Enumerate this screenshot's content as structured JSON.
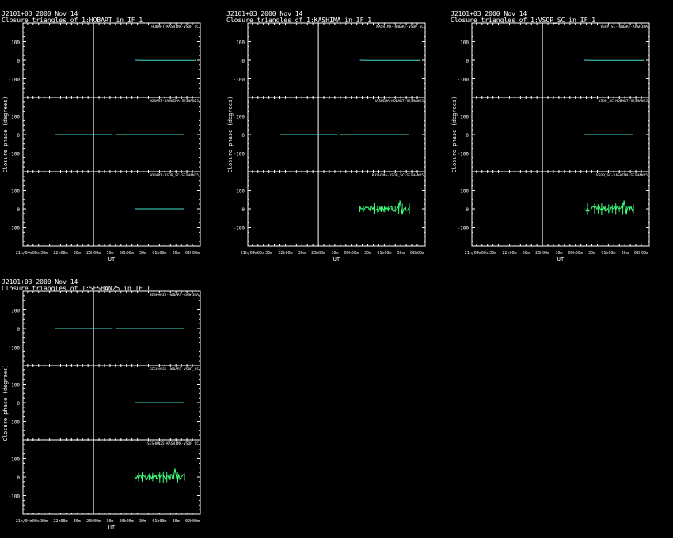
{
  "source": "J2101+03",
  "date": "2000 Nov 14",
  "ylabel": "Closure phase  (degrees)",
  "xlabel": "UT",
  "yticks": [
    "100",
    "0",
    "-100"
  ],
  "xticks": [
    "21h/04m00s",
    "30m",
    "22h00m",
    "30m",
    "23h00m",
    "30m",
    "00h00m",
    "30m",
    "01h00m",
    "30m",
    "02h00m"
  ],
  "colors": {
    "background": "#000000",
    "axes": "#ffffff",
    "cyan": "#40e0d0",
    "green": "#40ff80"
  },
  "chart_data": [
    {
      "type": "line",
      "title": "Closure triangles of 1:HOBART in IF 1",
      "panels": [
        {
          "label": "HOBART-KASHIMA-VSOP_SC",
          "series": [
            {
              "color": "cyan",
              "segments": [
                [
                  0.63,
                  0.74,
                  0,
                  -1
                ],
                [
                  0.74,
                  1.55,
                  -1,
                  -1
                ]
              ]
            }
          ]
        },
        {
          "label": "HOBART-KASHIMA-SESHAN25",
          "series": [
            {
              "color": "cyan",
              "segments": [
                [
                  -0.58,
                  0.29,
                  0,
                  0
                ],
                [
                  0.33,
                  1.38,
                  0,
                  0
                ]
              ]
            }
          ]
        },
        {
          "label": "HOBART-VSOP_SC-SESHAN25",
          "series": [
            {
              "color": "cyan",
              "segments": [
                [
                  0.63,
                  1.38,
                  0,
                  0
                ]
              ]
            }
          ]
        }
      ]
    },
    {
      "type": "line",
      "title": "Closure triangles of 1:KASHIMA in IF 1",
      "panels": [
        {
          "label": "KASHIMA-HOBART-VSOP_SC",
          "series": [
            {
              "color": "cyan",
              "segments": [
                [
                  0.63,
                  0.74,
                  0,
                  -1
                ],
                [
                  0.74,
                  1.55,
                  -1,
                  -1
                ]
              ]
            }
          ]
        },
        {
          "label": "KASHIMA-HOBART-SESHAN25",
          "series": [
            {
              "color": "cyan",
              "segments": [
                [
                  -0.58,
                  0.29,
                  0,
                  0
                ],
                [
                  0.33,
                  1.38,
                  0,
                  0
                ]
              ]
            }
          ]
        },
        {
          "label": "KASHIMA-VSOP_SC-SESHAN25",
          "series": [
            {
              "color": "green",
              "noisy": true,
              "segments": [
                [
                  0.63,
                  1.38,
                  0,
                  0
                ]
              ]
            }
          ]
        }
      ]
    },
    {
      "type": "line",
      "title": "Closure triangles of 1:VSOP_SC in IF 1",
      "panels": [
        {
          "label": "VSOP_SC-HOBART-KASHIMA",
          "series": [
            {
              "color": "cyan",
              "segments": [
                [
                  0.63,
                  0.74,
                  0,
                  -1
                ],
                [
                  0.74,
                  1.55,
                  -1,
                  -1
                ]
              ]
            }
          ]
        },
        {
          "label": "VSOP_SC-HOBART-SESHAN25",
          "series": [
            {
              "color": "cyan",
              "segments": [
                [
                  0.63,
                  1.38,
                  0,
                  0
                ]
              ]
            }
          ]
        },
        {
          "label": "VSOP_SC-KASHIMA-SESHAN25",
          "series": [
            {
              "color": "green",
              "noisy": true,
              "segments": [
                [
                  0.63,
                  1.38,
                  0,
                  0
                ]
              ]
            }
          ]
        }
      ]
    },
    {
      "type": "line",
      "title": "Closure triangles of 1:SESHAN25 in IF 1",
      "panels": [
        {
          "label": "SESHAN25-HOBART-KASHIMA",
          "series": [
            {
              "color": "cyan",
              "segments": [
                [
                  -0.58,
                  0.29,
                  0,
                  0
                ],
                [
                  0.33,
                  1.38,
                  0,
                  0
                ]
              ]
            }
          ]
        },
        {
          "label": "SESHAN25-HOBART-VSOP_SC",
          "series": [
            {
              "color": "cyan",
              "segments": [
                [
                  0.63,
                  1.38,
                  0,
                  0
                ]
              ]
            }
          ]
        },
        {
          "label": "SESHAN25-KASHIMA-VSOP_SC",
          "series": [
            {
              "color": "green",
              "noisy": true,
              "segments": [
                [
                  0.63,
                  1.38,
                  0,
                  0
                ]
              ]
            }
          ]
        }
      ]
    }
  ]
}
